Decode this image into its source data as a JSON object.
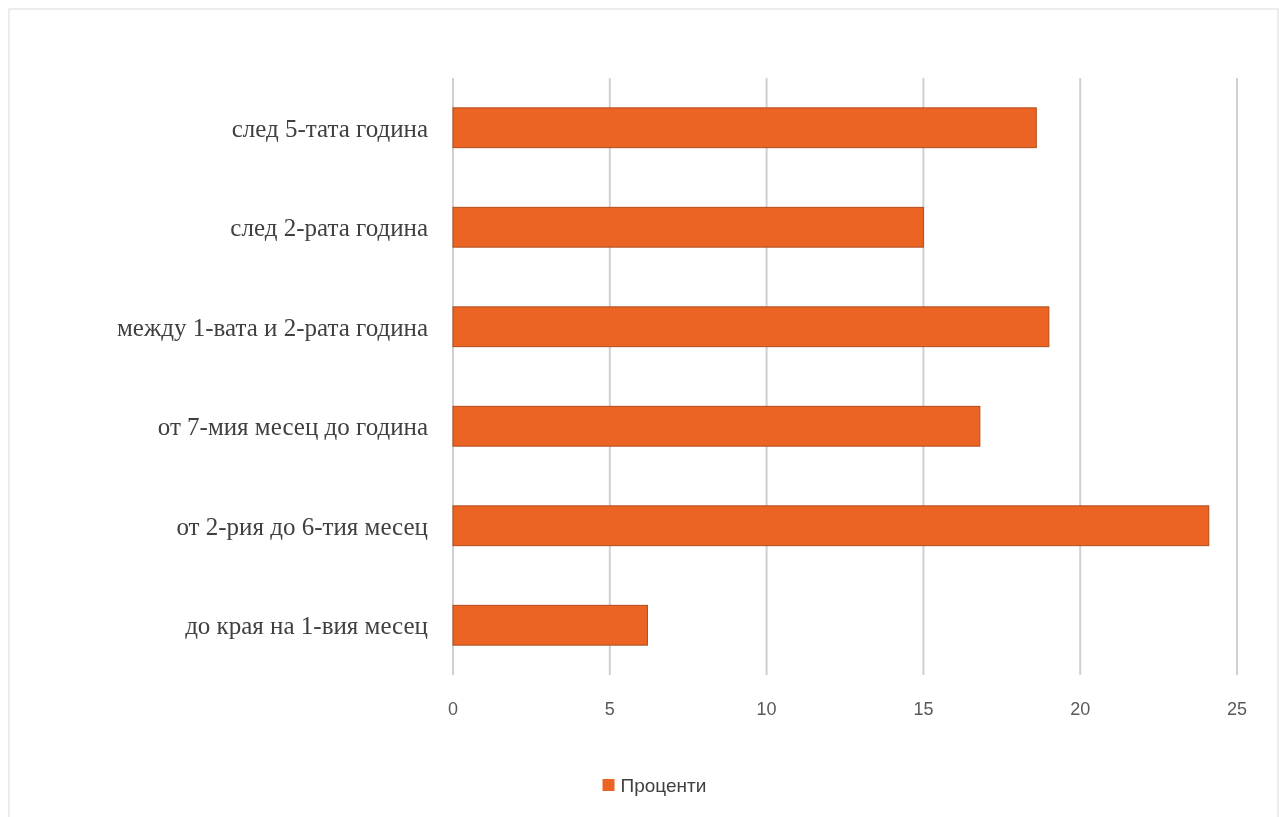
{
  "chart_data": {
    "type": "bar",
    "orientation": "horizontal",
    "categories": [
      "след 5-тата година",
      "след 2-рата година",
      "между 1-вата и 2-рата година",
      "от 7-мия месец до година",
      "от 2-рия до 6-тия месец",
      "до края на 1-вия месец"
    ],
    "series": [
      {
        "name": "Проценти",
        "color": "#eb6424",
        "values": [
          18.6,
          15,
          19,
          16.8,
          24.1,
          6.2
        ]
      }
    ],
    "xlim": [
      0,
      25
    ],
    "xticks": [
      0,
      5,
      10,
      15,
      20,
      25
    ],
    "grid": "x",
    "legend": "bottom"
  }
}
